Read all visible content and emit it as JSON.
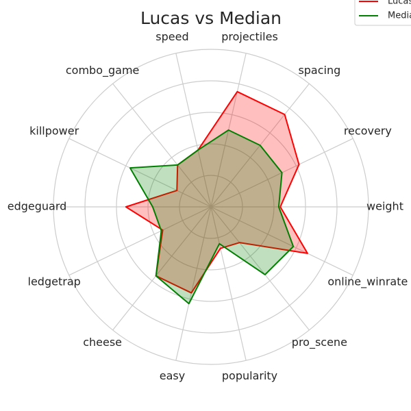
{
  "chart_data": {
    "type": "radar",
    "title": "Lucas vs Median",
    "categories": [
      "weight",
      "recovery",
      "spacing",
      "projectiles",
      "speed",
      "combo_game",
      "killpower",
      "edgeguard",
      "ledgetrap",
      "cheese",
      "easy",
      "popularity",
      "pro_scene",
      "online_winrate"
    ],
    "series": [
      {
        "name": "Lucas",
        "color": "#ff0000",
        "values": [
          0.44,
          0.62,
          0.75,
          0.75,
          0.37,
          0.34,
          0.24,
          0.54,
          0.34,
          0.56,
          0.56,
          0.27,
          0.29,
          0.68
        ]
      },
      {
        "name": "Median",
        "color": "#008000",
        "values": [
          0.43,
          0.5,
          0.5,
          0.5,
          0.37,
          0.34,
          0.57,
          0.37,
          0.35,
          0.56,
          0.63,
          0.24,
          0.55,
          0.58
        ]
      }
    ],
    "rlim": [
      0,
      1
    ],
    "rticks": [
      0.2,
      0.4,
      0.6,
      0.8,
      1.0
    ],
    "grid": true,
    "legend": "upper right"
  }
}
